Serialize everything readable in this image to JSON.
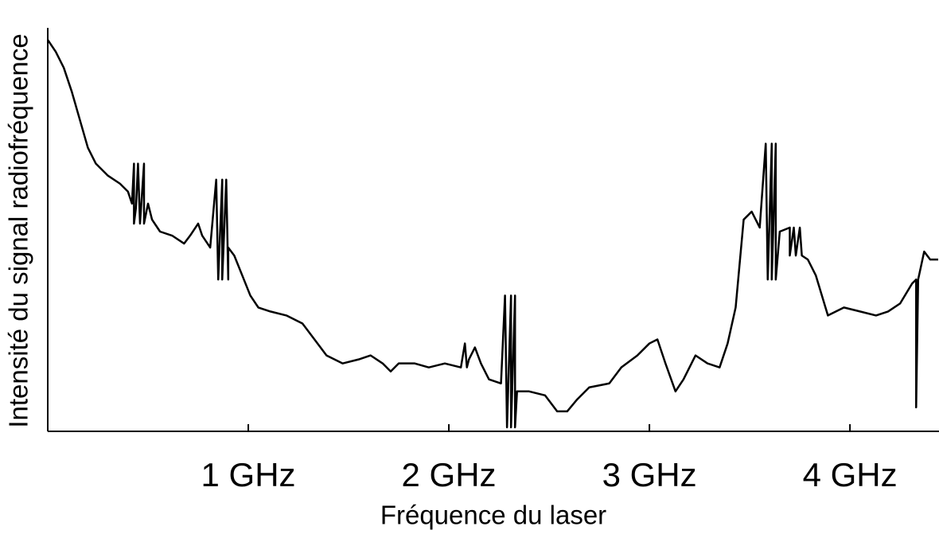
{
  "chart_data": {
    "type": "line",
    "x_label": "Fréquence du laser",
    "y_label": "Intensité du signal radiofréquence",
    "xlim": [
      0,
      4.44
    ],
    "ylim": [
      0,
      100
    ],
    "xticks": [
      {
        "value": 1,
        "label": "1 GHz"
      },
      {
        "value": 2,
        "label": "2 GHz"
      },
      {
        "value": 3,
        "label": "3 GHz"
      },
      {
        "value": 4,
        "label": "4 GHz"
      }
    ],
    "x": [
      0.0,
      0.04,
      0.08,
      0.12,
      0.16,
      0.2,
      0.24,
      0.3,
      0.36,
      0.4,
      0.42,
      0.43,
      0.43,
      0.44,
      0.45,
      0.46,
      0.48,
      0.48,
      0.5,
      0.52,
      0.56,
      0.62,
      0.68,
      0.71,
      0.75,
      0.77,
      0.81,
      0.84,
      0.85,
      0.87,
      0.87,
      0.89,
      0.9,
      0.9,
      0.93,
      0.97,
      1.01,
      1.05,
      1.11,
      1.19,
      1.27,
      1.33,
      1.39,
      1.47,
      1.55,
      1.61,
      1.67,
      1.71,
      1.75,
      1.83,
      1.9,
      1.98,
      2.06,
      2.08,
      2.09,
      2.1,
      2.13,
      2.16,
      2.2,
      2.26,
      2.28,
      2.29,
      2.31,
      2.31,
      2.33,
      2.33,
      2.34,
      2.4,
      2.48,
      2.54,
      2.59,
      2.64,
      2.7,
      2.8,
      2.86,
      2.94,
      3.0,
      3.04,
      3.08,
      3.13,
      3.17,
      3.23,
      3.29,
      3.35,
      3.39,
      3.43,
      3.47,
      3.51,
      3.55,
      3.58,
      3.59,
      3.61,
      3.61,
      3.63,
      3.63,
      3.65,
      3.7,
      3.7,
      3.72,
      3.73,
      3.75,
      3.76,
      3.79,
      3.83,
      3.89,
      3.97,
      4.05,
      4.13,
      4.19,
      4.25,
      4.31,
      4.33,
      4.33,
      4.34,
      4.37,
      4.4,
      4.44
    ],
    "series": [
      {
        "color": "#000000",
        "values": [
          98,
          95,
          91,
          85,
          78,
          71,
          67,
          64,
          62,
          60,
          57,
          67,
          52,
          56,
          67,
          52,
          67,
          52,
          57,
          53,
          50,
          49,
          47,
          49,
          52,
          49,
          46,
          63,
          38,
          63,
          38,
          63,
          38,
          46,
          44,
          39,
          34,
          31,
          30,
          29,
          27,
          23,
          19,
          17,
          18,
          19,
          17,
          15,
          17,
          17,
          16,
          17,
          16,
          22,
          16,
          18,
          21,
          17,
          13,
          12,
          34,
          1,
          34,
          1,
          34,
          1,
          10,
          10,
          9,
          5,
          5,
          8,
          11,
          12,
          16,
          19,
          22,
          23,
          17,
          10,
          13,
          19,
          17,
          16,
          22,
          31,
          53,
          55,
          51,
          72,
          38,
          72,
          38,
          72,
          38,
          50,
          51,
          44,
          51,
          44,
          51,
          44,
          43,
          39,
          29,
          31,
          30,
          29,
          30,
          32,
          37,
          38,
          6,
          38,
          45,
          43,
          43
        ]
      }
    ]
  }
}
